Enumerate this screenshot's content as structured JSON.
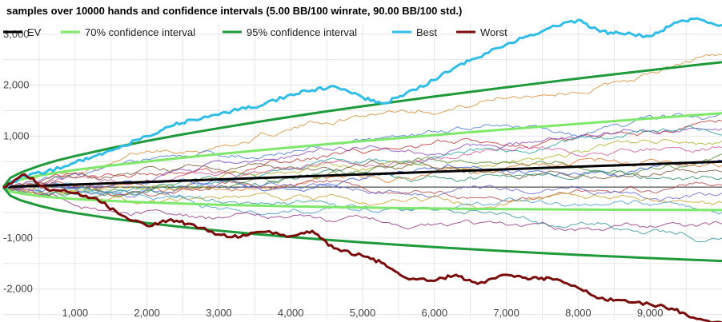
{
  "chart_data": {
    "type": "line",
    "title": "samples over 10000 hands and confidence intervals (5.00 BB/100 winrate, 90.00 BB/100 std.)",
    "xlabel": "",
    "ylabel": "",
    "xlim": [
      0,
      10000
    ],
    "ylim": [
      -2600,
      3200
    ],
    "x_ticks": [
      1000,
      2000,
      3000,
      4000,
      5000,
      6000,
      7000,
      8000,
      9000
    ],
    "x_tick_labels": [
      "1,000",
      "2,000",
      "3,000",
      "4,000",
      "5,000",
      "6,000",
      "7,000",
      "8,000",
      "9,000"
    ],
    "y_ticks": [
      -2000,
      -1000,
      0,
      1000,
      2000,
      3000
    ],
    "y_tick_labels": [
      "-2,000",
      "-1,000",
      "0",
      "1,000",
      "2,000",
      "3,000"
    ],
    "grid": true,
    "legend_position": "top",
    "legend": [
      {
        "name": "EV",
        "color": "#000000"
      },
      {
        "name": "70% confidence interval",
        "color": "#7ee86a"
      },
      {
        "name": "95% confidence interval",
        "color": "#1e9a3a"
      },
      {
        "name": "Best",
        "color": "#30bde8"
      },
      {
        "name": "Worst",
        "color": "#7a0c0c"
      }
    ],
    "series": [
      {
        "name": "EV",
        "color": "#000000",
        "x": [
          0,
          10000
        ],
        "y": [
          0,
          500
        ]
      },
      {
        "name": "70% confidence interval",
        "color": "#7ee86a",
        "x": [
          0,
          100,
          250,
          500,
          750,
          1000,
          1500,
          2000,
          2500,
          3000,
          3500,
          4000,
          4500,
          5000,
          5500,
          6000,
          6500,
          7000,
          7500,
          8000,
          8500,
          9000,
          9500,
          10000
        ],
        "y_upper": [
          0,
          95,
          153,
          226,
          285,
          335,
          423,
          502,
          576,
          646,
          713,
          778,
          840,
          901,
          961,
          1019,
          1076,
          1132,
          1187,
          1241,
          1295,
          1347,
          1399,
          1450
        ],
        "y_lower": [
          0,
          -85,
          -128,
          -176,
          -210,
          -235,
          -273,
          -302,
          -326,
          -346,
          -363,
          -378,
          -390,
          -401,
          -411,
          -419,
          -426,
          -432,
          -437,
          -441,
          -445,
          -447,
          -449,
          -450
        ]
      },
      {
        "name": "95% confidence interval",
        "color": "#1e9a3a",
        "x": [
          0,
          100,
          250,
          500,
          750,
          1000,
          1500,
          2000,
          2500,
          3000,
          3500,
          4000,
          4500,
          5000,
          5500,
          6000,
          6500,
          7000,
          7500,
          8000,
          8500,
          9000,
          9500,
          10000
        ],
        "y_upper": [
          0,
          181,
          289,
          416,
          523,
          608,
          765,
          905,
          1035,
          1155,
          1270,
          1380,
          1485,
          1585,
          1682,
          1777,
          1868,
          1957,
          2045,
          2130,
          2212,
          2293,
          2373,
          2450
        ],
        "y_lower": [
          0,
          -171,
          -264,
          -366,
          -448,
          -508,
          -615,
          -705,
          -785,
          -855,
          -920,
          -980,
          -1035,
          -1085,
          -1132,
          -1177,
          -1218,
          -1257,
          -1295,
          -1330,
          -1362,
          -1393,
          -1423,
          -1450
        ]
      },
      {
        "name": "Best",
        "color": "#30bde8",
        "x": [
          0,
          300,
          600,
          1000,
          1300,
          1600,
          2000,
          2300,
          2600,
          3000,
          3300,
          3600,
          4000,
          4300,
          4600,
          5000,
          5300,
          5600,
          6000,
          6300,
          6600,
          7000,
          7300,
          7600,
          8000,
          8300,
          8600,
          9000,
          9300,
          9600,
          10000
        ],
        "y": [
          0,
          220,
          300,
          480,
          620,
          760,
          1000,
          1180,
          1320,
          1420,
          1540,
          1600,
          1820,
          1900,
          1980,
          1760,
          1640,
          1840,
          2100,
          2360,
          2540,
          2800,
          2960,
          3120,
          3280,
          3050,
          3010,
          2960,
          3180,
          3300,
          3180
        ]
      },
      {
        "name": "Worst",
        "color": "#7a0c0c",
        "x": [
          0,
          300,
          600,
          1000,
          1300,
          1600,
          2000,
          2300,
          2600,
          3000,
          3300,
          3600,
          4000,
          4300,
          4600,
          5000,
          5300,
          5600,
          6000,
          6300,
          6600,
          7000,
          7300,
          7600,
          8000,
          8300,
          8600,
          9000,
          9300,
          9600,
          10000
        ],
        "y": [
          0,
          250,
          -40,
          -120,
          -220,
          -520,
          -760,
          -650,
          -720,
          -930,
          -980,
          -880,
          -960,
          -860,
          -1200,
          -1350,
          -1500,
          -1780,
          -1840,
          -1720,
          -1900,
          -1720,
          -1810,
          -1780,
          -1980,
          -2180,
          -2220,
          -2300,
          -2380,
          -2560,
          -2660
        ]
      }
    ]
  }
}
